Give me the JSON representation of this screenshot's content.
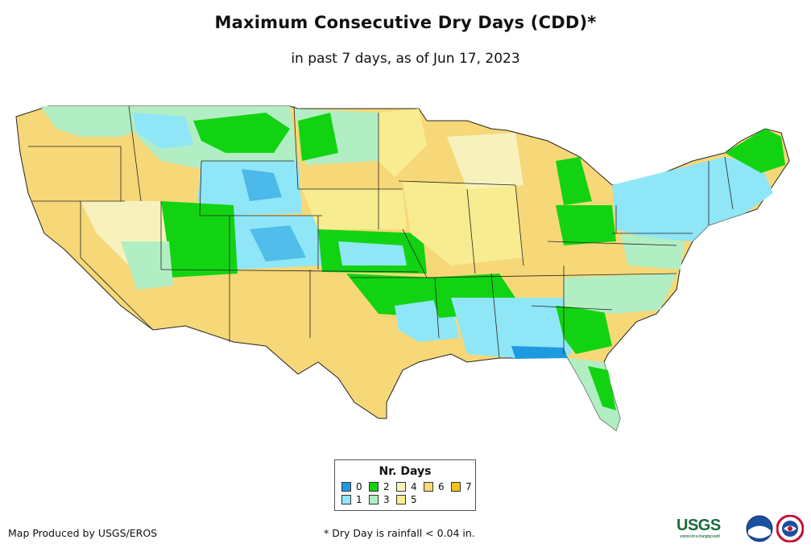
{
  "title": "Maximum Consecutive Dry Days (CDD)*",
  "subtitle": "in past 7 days, as of Jun 17, 2023",
  "legend": {
    "title": "Nr. Days",
    "items": [
      {
        "label": "0",
        "color": "#1e9be0"
      },
      {
        "label": "1",
        "color": "#8fe6f7"
      },
      {
        "label": "2",
        "color": "#12d312"
      },
      {
        "label": "3",
        "color": "#b2eec4"
      },
      {
        "label": "4",
        "color": "#f7f2bd"
      },
      {
        "label": "5",
        "color": "#f8ec90"
      },
      {
        "label": "6",
        "color": "#f7d878"
      },
      {
        "label": "7",
        "color": "#f4c21a"
      }
    ]
  },
  "footer": {
    "credit": "Map Produced by USGS/EROS",
    "note": "* Dry Day is rainfall < 0.04 in."
  },
  "logos": {
    "usgs": "USGS",
    "usgs_tagline": "science for a changing world"
  }
}
